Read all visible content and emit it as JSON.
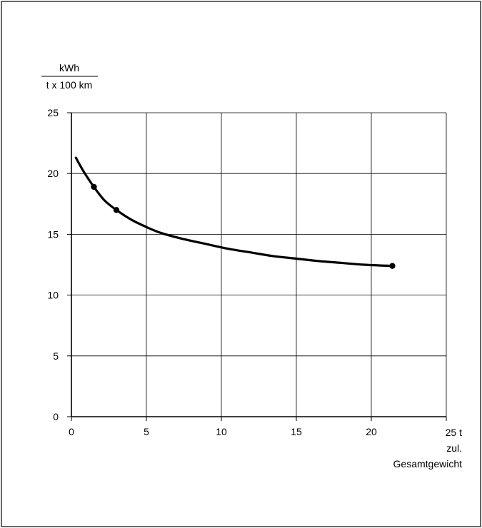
{
  "chart_data": {
    "type": "line",
    "ylabel_numerator": "kWh",
    "ylabel_denominator": "t x 100 km",
    "xlabel_lines": [
      "25 t",
      "zul.",
      "Gesamtgewicht"
    ],
    "xlim": [
      0,
      25
    ],
    "ylim": [
      0,
      25
    ],
    "x_ticks": [
      "0",
      "5",
      "10",
      "15",
      "20"
    ],
    "y_ticks": [
      "0",
      "5",
      "10",
      "15",
      "20",
      "25"
    ],
    "grid": true,
    "series": [
      {
        "curve": [
          {
            "x": 0.3,
            "y": 21.3
          },
          {
            "x": 0.8,
            "y": 20.2
          },
          {
            "x": 1.5,
            "y": 18.9
          },
          {
            "x": 2.2,
            "y": 17.8
          },
          {
            "x": 3.0,
            "y": 17.0
          },
          {
            "x": 4.0,
            "y": 16.2
          },
          {
            "x": 5.0,
            "y": 15.6
          },
          {
            "x": 6.0,
            "y": 15.1
          },
          {
            "x": 7.5,
            "y": 14.6
          },
          {
            "x": 9.0,
            "y": 14.2
          },
          {
            "x": 10.5,
            "y": 13.8
          },
          {
            "x": 12.0,
            "y": 13.5
          },
          {
            "x": 13.5,
            "y": 13.2
          },
          {
            "x": 15.0,
            "y": 13.0
          },
          {
            "x": 16.5,
            "y": 12.8
          },
          {
            "x": 18.0,
            "y": 12.65
          },
          {
            "x": 19.5,
            "y": 12.5
          },
          {
            "x": 21.4,
            "y": 12.4
          }
        ],
        "markers": [
          {
            "x": 1.5,
            "y": 18.9
          },
          {
            "x": 3.0,
            "y": 17.0
          },
          {
            "x": 21.4,
            "y": 12.4
          }
        ]
      }
    ]
  }
}
